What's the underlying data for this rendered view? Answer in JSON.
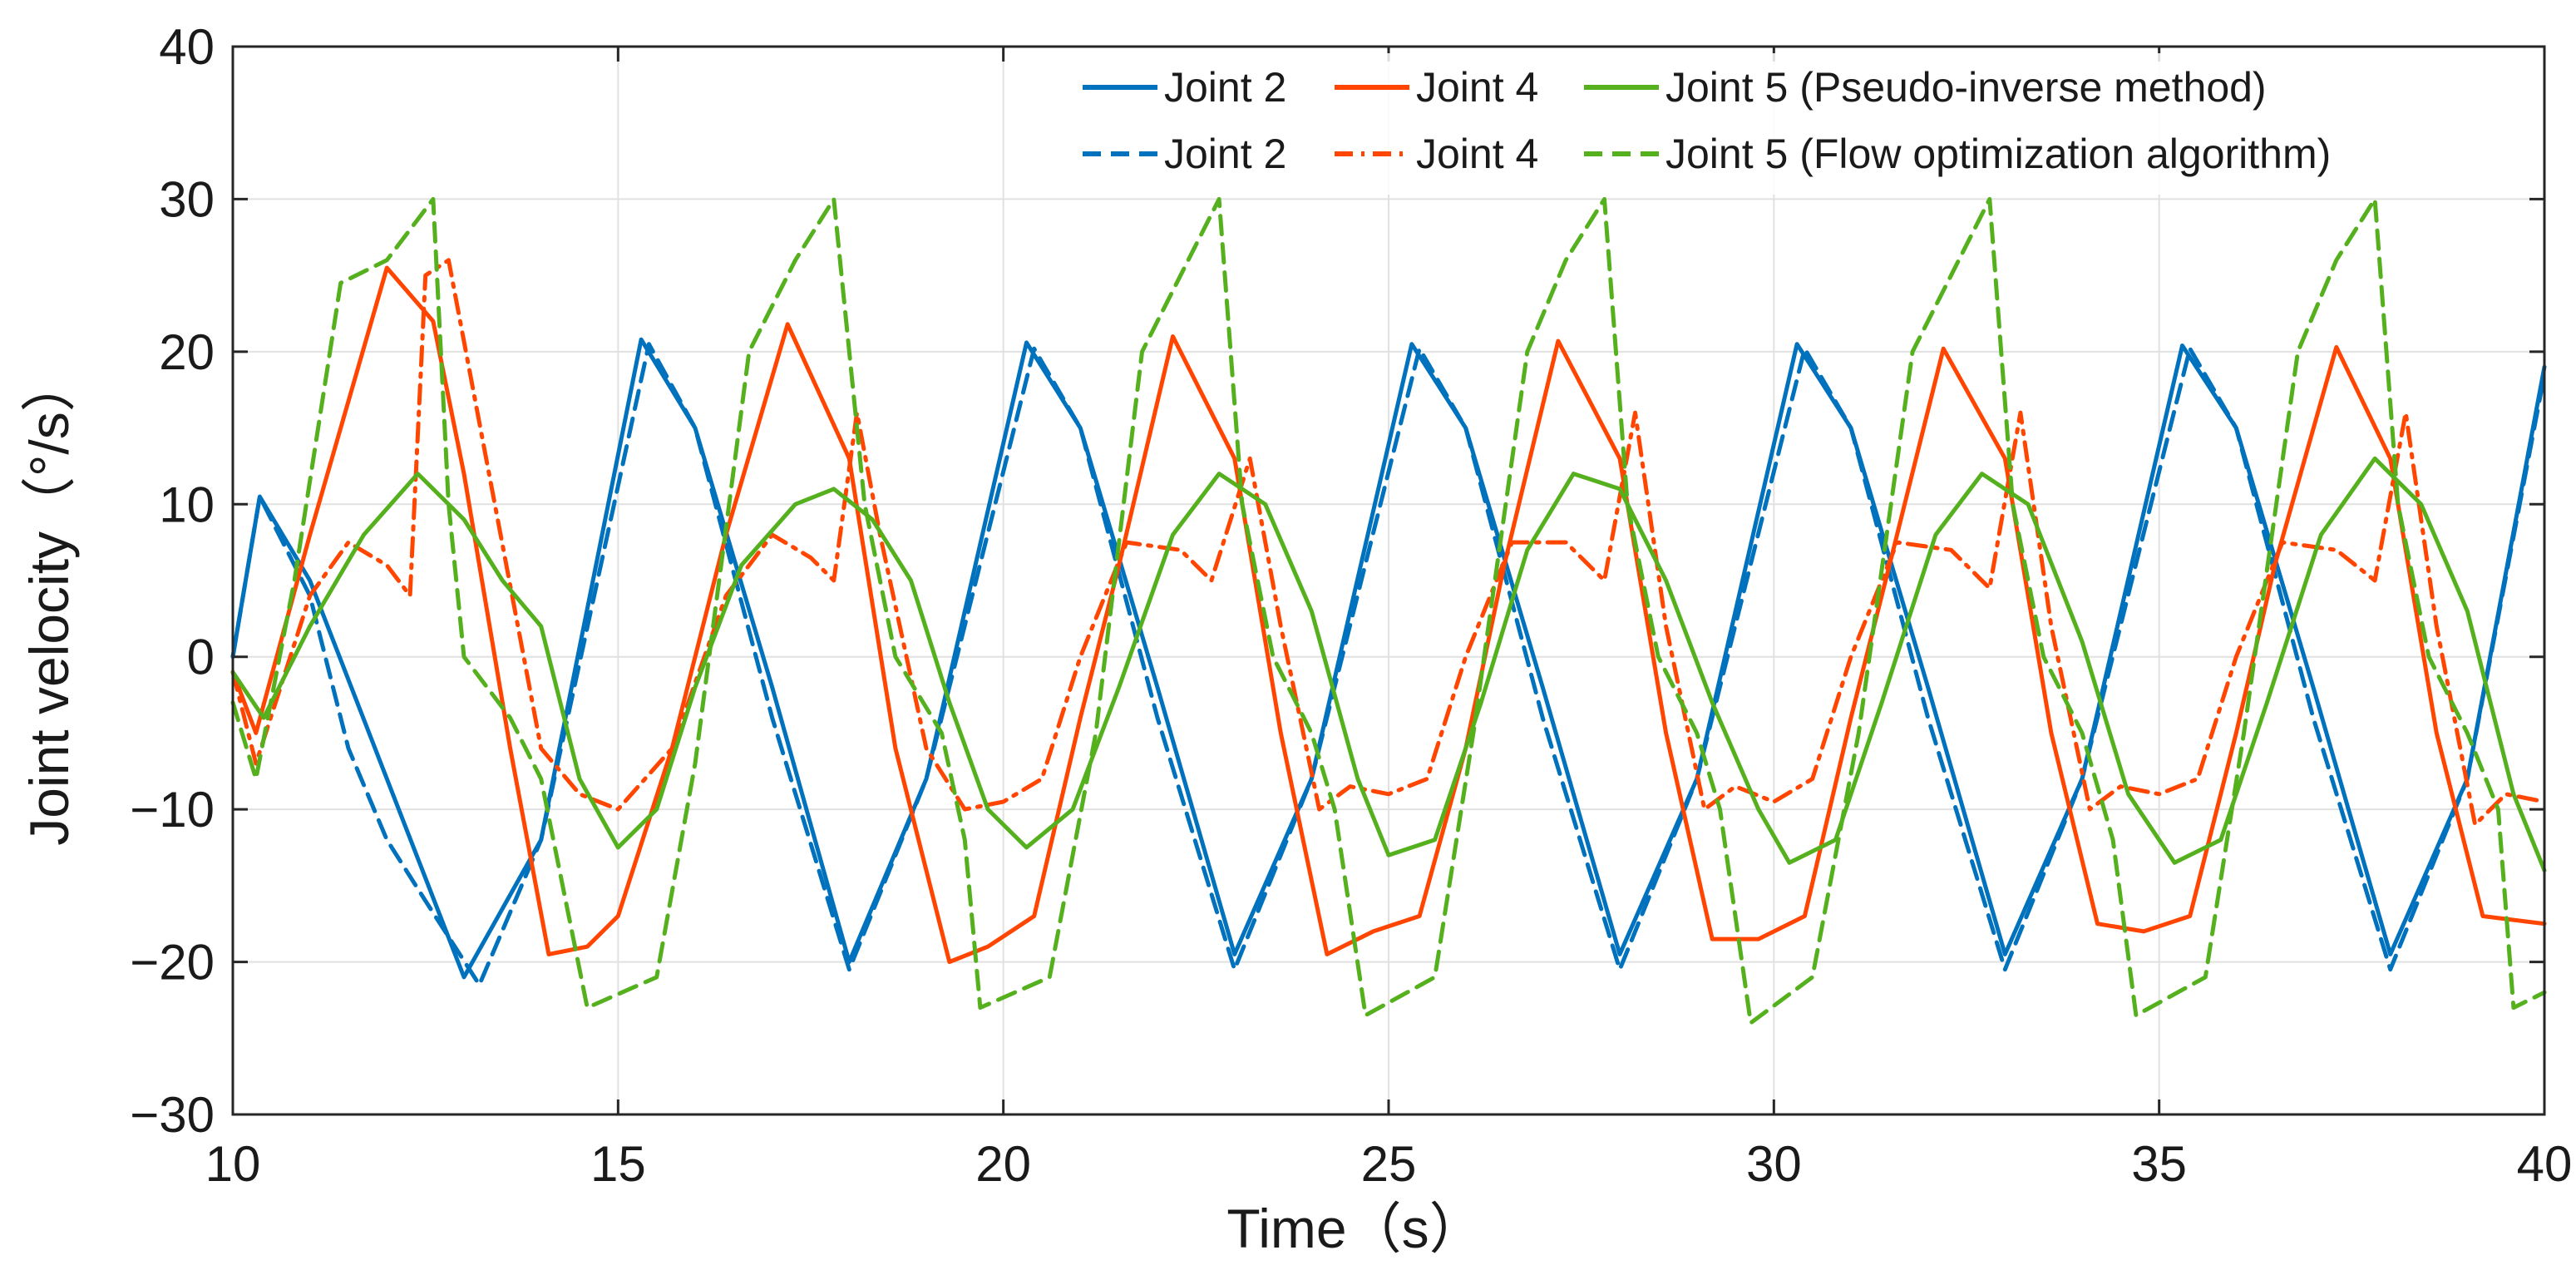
{
  "chart_data": {
    "type": "line",
    "title": "",
    "xlabel": "Time（s）",
    "ylabel": "Joint velocity（°/s）",
    "xlim": [
      10,
      40
    ],
    "ylim": [
      -30,
      40
    ],
    "xticks": [
      10,
      15,
      20,
      25,
      30,
      35,
      40
    ],
    "yticks": [
      -30,
      -20,
      -10,
      0,
      10,
      20,
      30,
      40
    ],
    "x_tick_labels": [
      "10",
      "15",
      "20",
      "25",
      "30",
      "35",
      "40"
    ],
    "y_tick_labels": [
      "−30",
      "−20",
      "−10",
      "0",
      "10",
      "20",
      "30",
      "40"
    ],
    "grid": true,
    "legend_position": "top-right",
    "legend": {
      "row1": [
        "Joint 2",
        "Joint 4",
        "Joint 5 (Pseudo-inverse method)"
      ],
      "row2": [
        "Joint 2",
        "Joint 4",
        "Joint 5 (Flow optimization algorithm)"
      ]
    },
    "colors": {
      "joint2": "#0072BD",
      "joint4": "#FF4500",
      "joint5": "#55B01E"
    },
    "series": [
      {
        "name": "Joint 2 (Pseudo-inverse method)",
        "style": "solid",
        "color": "#0072BD",
        "points": [
          [
            10,
            0
          ],
          [
            10.35,
            10.5
          ],
          [
            11,
            5
          ],
          [
            12,
            -8
          ],
          [
            13,
            -21
          ],
          [
            14,
            -12
          ],
          [
            15.3,
            20.8
          ],
          [
            16,
            15
          ],
          [
            17,
            -2
          ],
          [
            18,
            -20
          ],
          [
            19,
            -8
          ],
          [
            20.3,
            20.6
          ],
          [
            21,
            15
          ],
          [
            22,
            -2
          ],
          [
            23,
            -19.5
          ],
          [
            24,
            -8
          ],
          [
            25.3,
            20.5
          ],
          [
            26,
            15
          ],
          [
            27,
            -2
          ],
          [
            28,
            -19.5
          ],
          [
            29,
            -8
          ],
          [
            30.3,
            20.5
          ],
          [
            31,
            15
          ],
          [
            32,
            -2
          ],
          [
            33,
            -19.5
          ],
          [
            34,
            -8
          ],
          [
            35.3,
            20.4
          ],
          [
            36,
            15
          ],
          [
            37,
            -2
          ],
          [
            38,
            -19.5
          ],
          [
            39,
            -8
          ],
          [
            40,
            19
          ]
        ]
      },
      {
        "name": "Joint 2 (Flow optimization algorithm)",
        "style": "dashed",
        "color": "#0072BD",
        "points": [
          [
            10,
            0
          ],
          [
            10.35,
            10.5
          ],
          [
            11,
            4
          ],
          [
            11.5,
            -6
          ],
          [
            12,
            -12
          ],
          [
            12.5,
            -16
          ],
          [
            13.2,
            -21.5
          ],
          [
            14,
            -12
          ],
          [
            15.4,
            20.5
          ],
          [
            16,
            15
          ],
          [
            17,
            -4
          ],
          [
            18,
            -20.5
          ],
          [
            19,
            -8
          ],
          [
            20.4,
            20.2
          ],
          [
            21,
            15
          ],
          [
            22,
            -4
          ],
          [
            23,
            -20.5
          ],
          [
            24,
            -8
          ],
          [
            25.4,
            20.2
          ],
          [
            26,
            15
          ],
          [
            27,
            -4
          ],
          [
            28,
            -20.5
          ],
          [
            29,
            -8
          ],
          [
            30.4,
            20.2
          ],
          [
            31,
            15
          ],
          [
            32,
            -4
          ],
          [
            33,
            -20.5
          ],
          [
            34,
            -8
          ],
          [
            35.4,
            20.2
          ],
          [
            36,
            15
          ],
          [
            37,
            -4
          ],
          [
            38,
            -20.5
          ],
          [
            39,
            -8
          ],
          [
            40,
            18.5
          ]
        ]
      },
      {
        "name": "Joint 4 (Pseudo-inverse method)",
        "style": "solid",
        "color": "#FF4500",
        "points": [
          [
            10,
            -1
          ],
          [
            10.3,
            -5
          ],
          [
            11,
            8
          ],
          [
            12,
            25.5
          ],
          [
            12.6,
            22
          ],
          [
            13,
            12
          ],
          [
            13.6,
            -6
          ],
          [
            14.1,
            -19.5
          ],
          [
            14.6,
            -19
          ],
          [
            15,
            -17
          ],
          [
            15.7,
            -6
          ],
          [
            16.4,
            8
          ],
          [
            17.2,
            21.8
          ],
          [
            18,
            13
          ],
          [
            18.6,
            -6
          ],
          [
            19.3,
            -20
          ],
          [
            19.8,
            -19
          ],
          [
            20.4,
            -17
          ],
          [
            21,
            -4
          ],
          [
            21.5,
            6
          ],
          [
            22.2,
            21
          ],
          [
            23,
            13
          ],
          [
            23.6,
            -5
          ],
          [
            24.2,
            -19.5
          ],
          [
            24.8,
            -18
          ],
          [
            25.4,
            -17
          ],
          [
            26,
            -6
          ],
          [
            26.5,
            6
          ],
          [
            27.2,
            20.7
          ],
          [
            28,
            13
          ],
          [
            28.6,
            -5
          ],
          [
            29.2,
            -18.5
          ],
          [
            29.8,
            -18.5
          ],
          [
            30.4,
            -17
          ],
          [
            31,
            -4
          ],
          [
            31.5,
            6
          ],
          [
            32.2,
            20.2
          ],
          [
            33,
            13
          ],
          [
            33.6,
            -5
          ],
          [
            34.2,
            -17.5
          ],
          [
            34.8,
            -18
          ],
          [
            35.4,
            -17
          ],
          [
            36,
            -5
          ],
          [
            36.5,
            6
          ],
          [
            37.3,
            20.3
          ],
          [
            38,
            13
          ],
          [
            38.6,
            -5
          ],
          [
            39.2,
            -17
          ],
          [
            40,
            -17.5
          ]
        ]
      },
      {
        "name": "Joint 4 (Flow optimization algorithm)",
        "style": "dashdot",
        "color": "#FF4500",
        "points": [
          [
            10,
            -1
          ],
          [
            10.3,
            -7
          ],
          [
            11,
            4
          ],
          [
            11.5,
            7.5
          ],
          [
            12,
            6
          ],
          [
            12.3,
            4
          ],
          [
            12.5,
            25
          ],
          [
            12.8,
            26
          ],
          [
            13.4,
            10
          ],
          [
            14,
            -6
          ],
          [
            14.5,
            -9
          ],
          [
            15,
            -10
          ],
          [
            15.7,
            -6
          ],
          [
            16.4,
            4
          ],
          [
            17,
            8
          ],
          [
            17.5,
            6.5
          ],
          [
            17.8,
            5
          ],
          [
            18.1,
            16
          ],
          [
            18.4,
            8
          ],
          [
            19,
            -6
          ],
          [
            19.5,
            -10
          ],
          [
            20,
            -9.5
          ],
          [
            20.5,
            -8
          ],
          [
            21,
            0
          ],
          [
            21.6,
            7.5
          ],
          [
            22.3,
            7
          ],
          [
            22.7,
            5
          ],
          [
            23.2,
            13
          ],
          [
            23.6,
            2
          ],
          [
            24.1,
            -10
          ],
          [
            24.5,
            -8.5
          ],
          [
            25,
            -9
          ],
          [
            25.5,
            -8
          ],
          [
            26,
            0
          ],
          [
            26.6,
            7.5
          ],
          [
            27.3,
            7.5
          ],
          [
            27.8,
            5
          ],
          [
            28.2,
            16
          ],
          [
            28.6,
            2
          ],
          [
            29.1,
            -10
          ],
          [
            29.5,
            -8.5
          ],
          [
            30,
            -9.5
          ],
          [
            30.5,
            -8
          ],
          [
            31,
            0
          ],
          [
            31.6,
            7.5
          ],
          [
            32.3,
            7
          ],
          [
            32.8,
            4.5
          ],
          [
            33.2,
            16
          ],
          [
            33.6,
            2
          ],
          [
            34.1,
            -10
          ],
          [
            34.5,
            -8.5
          ],
          [
            35,
            -9
          ],
          [
            35.5,
            -8
          ],
          [
            36,
            0
          ],
          [
            36.6,
            7.5
          ],
          [
            37.3,
            7
          ],
          [
            37.8,
            5
          ],
          [
            38.2,
            16
          ],
          [
            38.6,
            2
          ],
          [
            39.1,
            -11
          ],
          [
            39.5,
            -9
          ],
          [
            40,
            -9.5
          ]
        ]
      },
      {
        "name": "Joint 5 (Pseudo-inverse method)",
        "style": "solid",
        "color": "#55B01E",
        "points": [
          [
            10,
            -1
          ],
          [
            10.4,
            -4
          ],
          [
            11,
            2
          ],
          [
            11.7,
            8
          ],
          [
            12.4,
            12
          ],
          [
            13,
            9
          ],
          [
            13.5,
            5
          ],
          [
            14,
            2
          ],
          [
            14.5,
            -8
          ],
          [
            15,
            -12.5
          ],
          [
            15.5,
            -10
          ],
          [
            16,
            -2
          ],
          [
            16.6,
            6
          ],
          [
            17.3,
            10
          ],
          [
            17.8,
            11
          ],
          [
            18.3,
            9
          ],
          [
            18.8,
            5
          ],
          [
            19.3,
            -3
          ],
          [
            19.8,
            -10
          ],
          [
            20.3,
            -12.5
          ],
          [
            20.9,
            -10
          ],
          [
            21.5,
            -2
          ],
          [
            22.2,
            8
          ],
          [
            22.8,
            12
          ],
          [
            23.4,
            10
          ],
          [
            24,
            3
          ],
          [
            24.6,
            -8
          ],
          [
            25,
            -13
          ],
          [
            25.6,
            -12
          ],
          [
            26.2,
            -3
          ],
          [
            26.8,
            7
          ],
          [
            27.4,
            12
          ],
          [
            28,
            11
          ],
          [
            28.6,
            5
          ],
          [
            29.2,
            -3
          ],
          [
            29.8,
            -10
          ],
          [
            30.2,
            -13.5
          ],
          [
            30.8,
            -12
          ],
          [
            31.4,
            -3
          ],
          [
            32.1,
            8
          ],
          [
            32.7,
            12
          ],
          [
            33.3,
            10
          ],
          [
            34,
            1
          ],
          [
            34.6,
            -9
          ],
          [
            35.2,
            -13.5
          ],
          [
            35.8,
            -12
          ],
          [
            36.4,
            -3
          ],
          [
            37.1,
            8
          ],
          [
            37.8,
            13
          ],
          [
            38.4,
            10
          ],
          [
            39,
            3
          ],
          [
            39.6,
            -9
          ],
          [
            40,
            -14
          ]
        ]
      },
      {
        "name": "Joint 5 (Flow optimization algorithm)",
        "style": "dashed",
        "color": "#55B01E",
        "points": [
          [
            10,
            -3
          ],
          [
            10.3,
            -8
          ],
          [
            10.8,
            5
          ],
          [
            11.4,
            24.5
          ],
          [
            12,
            26
          ],
          [
            12.6,
            30
          ],
          [
            12.8,
            10
          ],
          [
            13,
            0
          ],
          [
            13.6,
            -4
          ],
          [
            14,
            -8
          ],
          [
            14.6,
            -23
          ],
          [
            15.5,
            -21
          ],
          [
            16,
            -7
          ],
          [
            16.7,
            20
          ],
          [
            17.3,
            26
          ],
          [
            17.8,
            30
          ],
          [
            18.2,
            10
          ],
          [
            18.6,
            0
          ],
          [
            19.2,
            -5
          ],
          [
            19.5,
            -12
          ],
          [
            19.7,
            -23
          ],
          [
            20.6,
            -21
          ],
          [
            21.2,
            -5
          ],
          [
            21.8,
            20
          ],
          [
            22.3,
            25
          ],
          [
            22.8,
            30
          ],
          [
            23.1,
            10
          ],
          [
            23.5,
            0
          ],
          [
            24,
            -5
          ],
          [
            24.3,
            -10
          ],
          [
            24.7,
            -23.5
          ],
          [
            25.6,
            -21
          ],
          [
            26.1,
            -5
          ],
          [
            26.8,
            20
          ],
          [
            27.3,
            26
          ],
          [
            27.8,
            30
          ],
          [
            28.1,
            10
          ],
          [
            28.5,
            0
          ],
          [
            29,
            -5
          ],
          [
            29.3,
            -10
          ],
          [
            29.7,
            -24
          ],
          [
            30.5,
            -21
          ],
          [
            31.1,
            -5
          ],
          [
            31.8,
            20
          ],
          [
            32.4,
            26
          ],
          [
            32.8,
            30
          ],
          [
            33.1,
            10
          ],
          [
            33.5,
            0
          ],
          [
            34,
            -5
          ],
          [
            34.4,
            -12
          ],
          [
            34.7,
            -23.5
          ],
          [
            35.6,
            -21
          ],
          [
            36.1,
            -5
          ],
          [
            36.8,
            20
          ],
          [
            37.3,
            26
          ],
          [
            37.8,
            30
          ],
          [
            38.1,
            10
          ],
          [
            38.5,
            0
          ],
          [
            39,
            -5
          ],
          [
            39.4,
            -10
          ],
          [
            39.6,
            -23
          ],
          [
            40,
            -22
          ]
        ]
      }
    ]
  }
}
